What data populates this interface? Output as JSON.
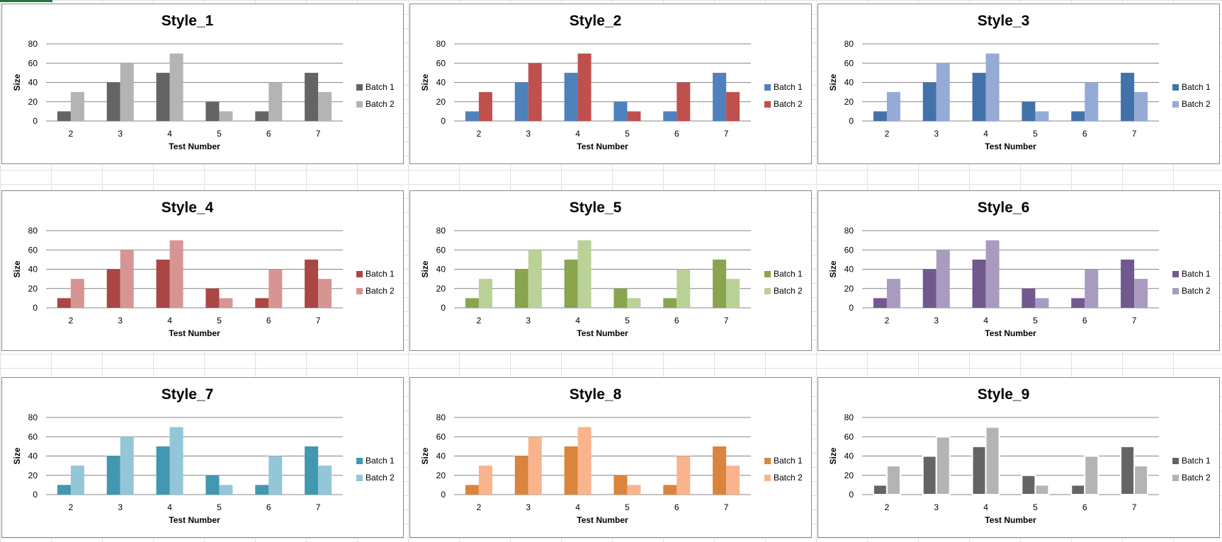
{
  "charts": [
    {
      "title": "Style_1",
      "colors": [
        "#646464",
        "#b4b4b4"
      ],
      "frame_color": null
    },
    {
      "title": "Style_2",
      "colors": [
        "#4f81bd",
        "#c0504d"
      ],
      "frame_color": null
    },
    {
      "title": "Style_3",
      "colors": [
        "#4372aa",
        "#95abd6"
      ],
      "frame_color": null
    },
    {
      "title": "Style_4",
      "colors": [
        "#aa4643",
        "#d69593"
      ],
      "frame_color": null
    },
    {
      "title": "Style_5",
      "colors": [
        "#89a54e",
        "#bad197"
      ],
      "frame_color": null
    },
    {
      "title": "Style_6",
      "colors": [
        "#71588f",
        "#a99bc0"
      ],
      "frame_color": null
    },
    {
      "title": "Style_7",
      "colors": [
        "#4198af",
        "#93c6d8"
      ],
      "frame_color": null
    },
    {
      "title": "Style_8",
      "colors": [
        "#db843d",
        "#f9b48d"
      ],
      "frame_color": null
    },
    {
      "title": "Style_9",
      "colors": [
        "#646464",
        "#b4b4b4"
      ],
      "frame_color": "#ffffff"
    }
  ],
  "chart_data": [
    {
      "type": "bar",
      "title": "Style_1",
      "categories": [
        "2",
        "3",
        "4",
        "5",
        "6",
        "7"
      ],
      "series": [
        {
          "name": "Batch 1",
          "values": [
            10,
            40,
            50,
            20,
            10,
            50
          ]
        },
        {
          "name": "Batch 2",
          "values": [
            30,
            60,
            70,
            10,
            40,
            30
          ]
        }
      ],
      "xlabel": "Test Number",
      "ylabel": "Size",
      "ylim": [
        0,
        80
      ],
      "yticks": [
        "0",
        "20",
        "40",
        "60",
        "80"
      ],
      "grid": true,
      "legend": "right"
    },
    {
      "type": "bar",
      "title": "Style_2",
      "categories": [
        "2",
        "3",
        "4",
        "5",
        "6",
        "7"
      ],
      "series": [
        {
          "name": "Batch 1",
          "values": [
            10,
            40,
            50,
            20,
            10,
            50
          ]
        },
        {
          "name": "Batch 2",
          "values": [
            30,
            60,
            70,
            10,
            40,
            30
          ]
        }
      ],
      "xlabel": "Test Number",
      "ylabel": "Size",
      "ylim": [
        0,
        80
      ],
      "yticks": [
        "0",
        "20",
        "40",
        "60",
        "80"
      ],
      "grid": true,
      "legend": "right"
    },
    {
      "type": "bar",
      "title": "Style_3",
      "categories": [
        "2",
        "3",
        "4",
        "5",
        "6",
        "7"
      ],
      "series": [
        {
          "name": "Batch 1",
          "values": [
            10,
            40,
            50,
            20,
            10,
            50
          ]
        },
        {
          "name": "Batch 2",
          "values": [
            30,
            60,
            70,
            10,
            40,
            30
          ]
        }
      ],
      "xlabel": "Test Number",
      "ylabel": "Size",
      "ylim": [
        0,
        80
      ],
      "yticks": [
        "0",
        "20",
        "40",
        "60",
        "80"
      ],
      "grid": true,
      "legend": "right"
    },
    {
      "type": "bar",
      "title": "Style_4",
      "categories": [
        "2",
        "3",
        "4",
        "5",
        "6",
        "7"
      ],
      "series": [
        {
          "name": "Batch 1",
          "values": [
            10,
            40,
            50,
            20,
            10,
            50
          ]
        },
        {
          "name": "Batch 2",
          "values": [
            30,
            60,
            70,
            10,
            40,
            30
          ]
        }
      ],
      "xlabel": "Test Number",
      "ylabel": "Size",
      "ylim": [
        0,
        80
      ],
      "yticks": [
        "0",
        "20",
        "40",
        "60",
        "80"
      ],
      "grid": true,
      "legend": "right"
    },
    {
      "type": "bar",
      "title": "Style_5",
      "categories": [
        "2",
        "3",
        "4",
        "5",
        "6",
        "7"
      ],
      "series": [
        {
          "name": "Batch 1",
          "values": [
            10,
            40,
            50,
            20,
            10,
            50
          ]
        },
        {
          "name": "Batch 2",
          "values": [
            30,
            60,
            70,
            10,
            40,
            30
          ]
        }
      ],
      "xlabel": "Test Number",
      "ylabel": "Size",
      "ylim": [
        0,
        80
      ],
      "yticks": [
        "0",
        "20",
        "40",
        "60",
        "80"
      ],
      "grid": true,
      "legend": "right"
    },
    {
      "type": "bar",
      "title": "Style_6",
      "categories": [
        "2",
        "3",
        "4",
        "5",
        "6",
        "7"
      ],
      "series": [
        {
          "name": "Batch 1",
          "values": [
            10,
            40,
            50,
            20,
            10,
            50
          ]
        },
        {
          "name": "Batch 2",
          "values": [
            30,
            60,
            70,
            10,
            40,
            30
          ]
        }
      ],
      "xlabel": "Test Number",
      "ylabel": "Size",
      "ylim": [
        0,
        80
      ],
      "yticks": [
        "0",
        "20",
        "40",
        "60",
        "80"
      ],
      "grid": true,
      "legend": "right"
    },
    {
      "type": "bar",
      "title": "Style_7",
      "categories": [
        "2",
        "3",
        "4",
        "5",
        "6",
        "7"
      ],
      "series": [
        {
          "name": "Batch 1",
          "values": [
            10,
            40,
            50,
            20,
            10,
            50
          ]
        },
        {
          "name": "Batch 2",
          "values": [
            30,
            60,
            70,
            10,
            40,
            30
          ]
        }
      ],
      "xlabel": "Test Number",
      "ylabel": "Size",
      "ylim": [
        0,
        80
      ],
      "yticks": [
        "0",
        "20",
        "40",
        "60",
        "80"
      ],
      "grid": true,
      "legend": "right"
    },
    {
      "type": "bar",
      "title": "Style_8",
      "categories": [
        "2",
        "3",
        "4",
        "5",
        "6",
        "7"
      ],
      "series": [
        {
          "name": "Batch 1",
          "values": [
            10,
            40,
            50,
            20,
            10,
            50
          ]
        },
        {
          "name": "Batch 2",
          "values": [
            30,
            60,
            70,
            10,
            40,
            30
          ]
        }
      ],
      "xlabel": "Test Number",
      "ylabel": "Size",
      "ylim": [
        0,
        80
      ],
      "yticks": [
        "0",
        "20",
        "40",
        "60",
        "80"
      ],
      "grid": true,
      "legend": "right"
    },
    {
      "type": "bar",
      "title": "Style_9",
      "categories": [
        "2",
        "3",
        "4",
        "5",
        "6",
        "7"
      ],
      "series": [
        {
          "name": "Batch 1",
          "values": [
            10,
            40,
            50,
            20,
            10,
            50
          ]
        },
        {
          "name": "Batch 2",
          "values": [
            30,
            60,
            70,
            10,
            40,
            30
          ]
        }
      ],
      "xlabel": "Test Number",
      "ylabel": "Size",
      "ylim": [
        0,
        80
      ],
      "yticks": [
        "0",
        "20",
        "40",
        "60",
        "80"
      ],
      "grid": true,
      "legend": "right"
    }
  ]
}
